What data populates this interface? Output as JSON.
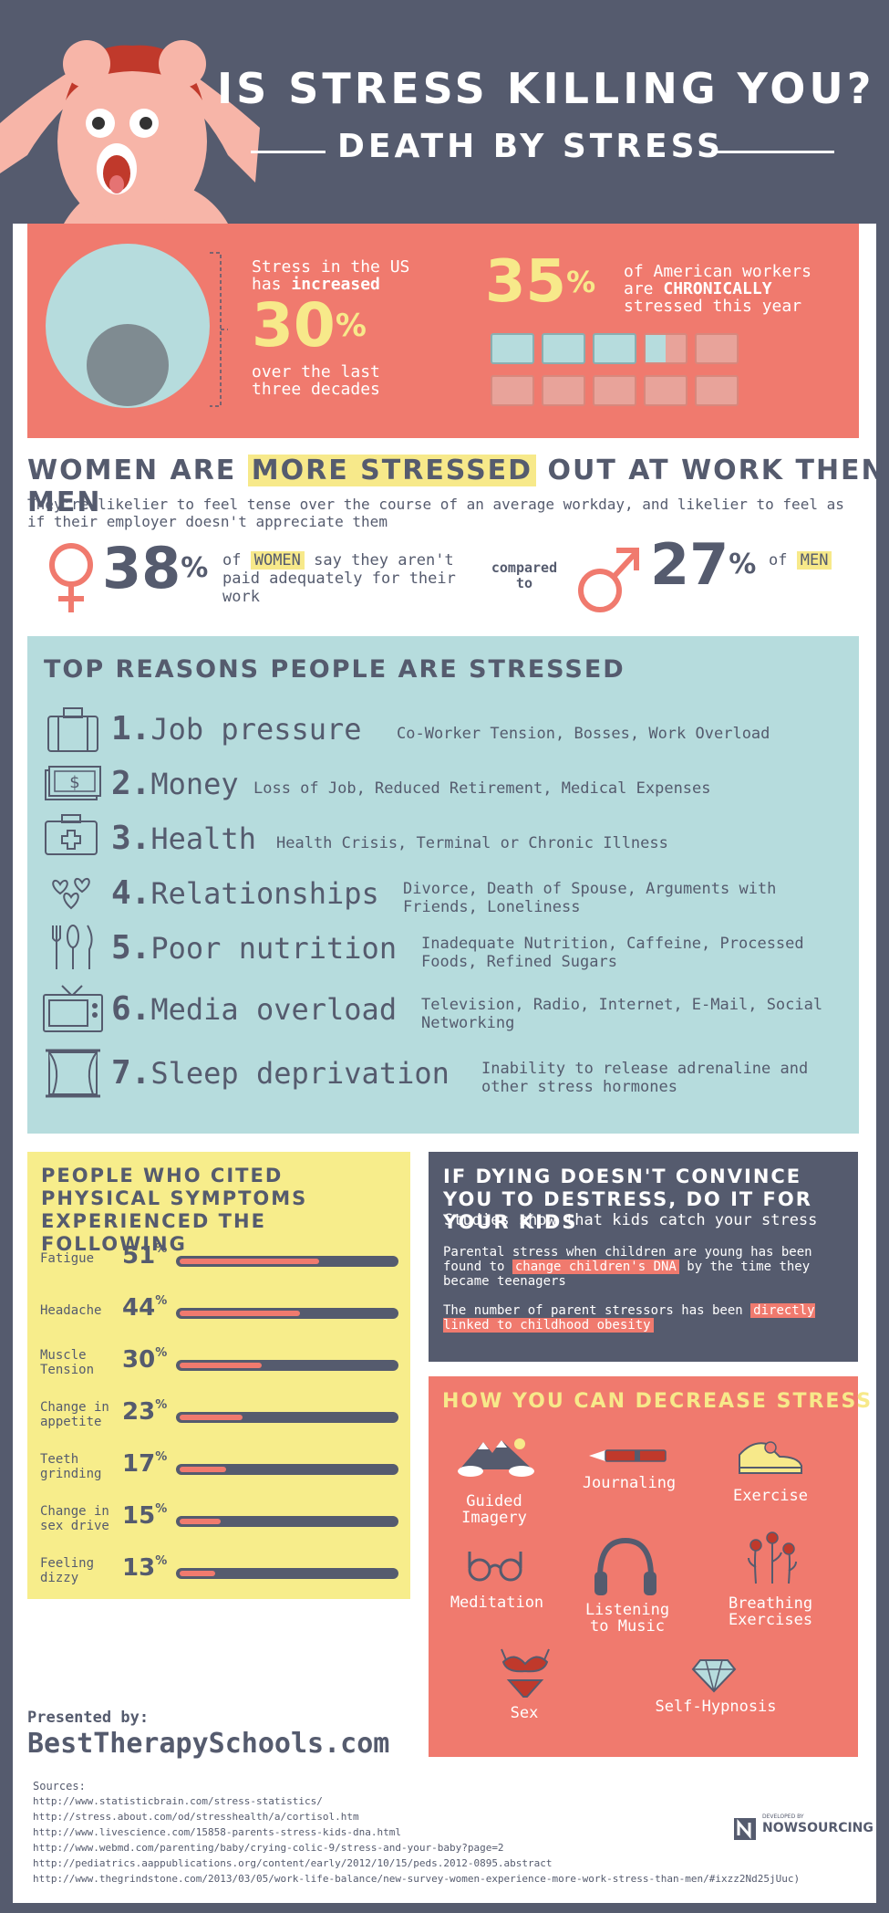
{
  "header": {
    "title": "IS STRESS KILLING YOU?",
    "subtitle": "DEATH BY STRESS"
  },
  "stats": {
    "increase": {
      "line1": "Stress in the US",
      "line2_prefix": "has ",
      "line2_bold": "increased",
      "value": "30",
      "unit": "%",
      "line3": "over the last",
      "line4": "three decades"
    },
    "chronic": {
      "value": "35",
      "unit": "%",
      "line1": "of American workers",
      "line2_prefix": "are ",
      "line2_bold": "CHRONICALLY",
      "line3": "stressed this year",
      "level": 0.35
    }
  },
  "women": {
    "title_part1": "WOMEN ARE ",
    "title_highlight": "MORE STRESSED",
    "title_part2": " OUT AT WORK THEN MEN",
    "description": "They're likelier to feel tense over the course of an average workday, and likelier to feel as if their employer doesn't appreciate them",
    "women_value": "38",
    "women_unit": "%",
    "women_text_prefix": "of ",
    "women_text_highlight": "WOMEN",
    "women_text_rest": " say they aren't paid adequately for their work",
    "compared": "compared to",
    "men_value": "27",
    "men_unit": "%",
    "men_text_prefix": "of ",
    "men_text_highlight": "MEN"
  },
  "reasons": {
    "title": "TOP REASONS PEOPLE ARE STRESSED",
    "items": [
      {
        "num": "1.",
        "name": "Job pressure",
        "desc": "Co-Worker Tension, Bosses, Work Overload",
        "icon": "briefcase-icon"
      },
      {
        "num": "2.",
        "name": "Money",
        "desc": "Loss of Job, Reduced Retirement, Medical Expenses",
        "icon": "money-icon"
      },
      {
        "num": "3.",
        "name": "Health",
        "desc": "Health Crisis, Terminal or Chronic Illness",
        "icon": "first-aid-icon"
      },
      {
        "num": "4.",
        "name": "Relationships",
        "desc": "Divorce, Death of Spouse, Arguments with Friends, Loneliness",
        "icon": "hearts-icon"
      },
      {
        "num": "5.",
        "name": "Poor nutrition",
        "desc": "Inadequate Nutrition, Caffeine, Processed Foods, Refined Sugars",
        "icon": "cutlery-icon"
      },
      {
        "num": "6.",
        "name": "Media overload",
        "desc": "Television, Radio, Internet, E-Mail, Social Networking",
        "icon": "tv-icon"
      },
      {
        "num": "7.",
        "name": "Sleep deprivation",
        "desc": "Inability to release adrenaline and other stress hormones",
        "icon": "window-icon"
      }
    ]
  },
  "symptoms": {
    "title": "PEOPLE WHO CITED PHYSICAL SYMPTOMS EXPERIENCED THE FOLLOWING",
    "items": [
      {
        "name": "Fatigue",
        "value": "51",
        "unit": "%",
        "level": 0.51
      },
      {
        "name": "Headache",
        "value": "44",
        "unit": "%",
        "level": 0.44
      },
      {
        "name": "Muscle Tension",
        "value": "30",
        "unit": "%",
        "level": 0.3
      },
      {
        "name": "Change in appetite",
        "value": "23",
        "unit": "%",
        "level": 0.23
      },
      {
        "name": "Teeth grinding",
        "value": "17",
        "unit": "%",
        "level": 0.17
      },
      {
        "name": "Change in sex drive",
        "value": "15",
        "unit": "%",
        "level": 0.15
      },
      {
        "name": "Feeling dizzy",
        "value": "13",
        "unit": "%",
        "level": 0.13
      }
    ]
  },
  "kids": {
    "title": "IF DYING DOESN'T CONVINCE YOU TO DESTRESS, DO IT FOR YOUR KIDS",
    "subtitle": "Studies show that kids catch your stress",
    "p1_a": "Parental stress when children are young has been found to ",
    "p1_hl": "change children's DNA",
    "p1_b": " by the time they became teenagers",
    "p2_a": "The number of parent stressors has been ",
    "p2_hl": "directly linked to childhood obesity"
  },
  "decrease": {
    "title": "HOW YOU CAN DECREASE STRESS",
    "methods": [
      {
        "label": "Guided Imagery",
        "icon": "mountain-icon"
      },
      {
        "label": "Journaling",
        "icon": "pen-icon"
      },
      {
        "label": "Exercise",
        "icon": "sneaker-icon"
      },
      {
        "label": "Meditation",
        "icon": "glasses-icon"
      },
      {
        "label": "Listening to Music",
        "icon": "headphones-icon"
      },
      {
        "label": "Breathing Exercises",
        "icon": "flowers-icon"
      },
      {
        "label": "Sex",
        "icon": "lingerie-icon"
      },
      {
        "label": "Self-Hypnosis",
        "icon": "diamond-icon"
      }
    ]
  },
  "credits": {
    "presented_by": "Presented by:",
    "site": "BestTherapySchools.com",
    "sources_label": "Sources:",
    "sources": [
      "http://www.statisticbrain.com/stress-statistics/",
      "http://stress.about.com/od/stresshealth/a/cortisol.htm",
      "http://www.livescience.com/15858-parents-stress-kids-dna.html",
      "http://www.webmd.com/parenting/baby/crying-colic-9/stress-and-your-baby?page=2",
      "http://pediatrics.aappublications.org/content/early/2012/10/15/peds.2012-0895.abstract",
      "http://www.thegrindstone.com/2013/03/05/work-life-balance/new-survey-women-experience-more-work-stress-than-men/#ixzz2Nd25jUuc)"
    ],
    "dev_small": "DEVELOPED BY",
    "dev_name": "NOWSOURCING"
  },
  "colors": {
    "slate": "#555b6e",
    "coral": "#f07a6e",
    "teal": "#b6dcdd",
    "yellow": "#f7e98a"
  }
}
